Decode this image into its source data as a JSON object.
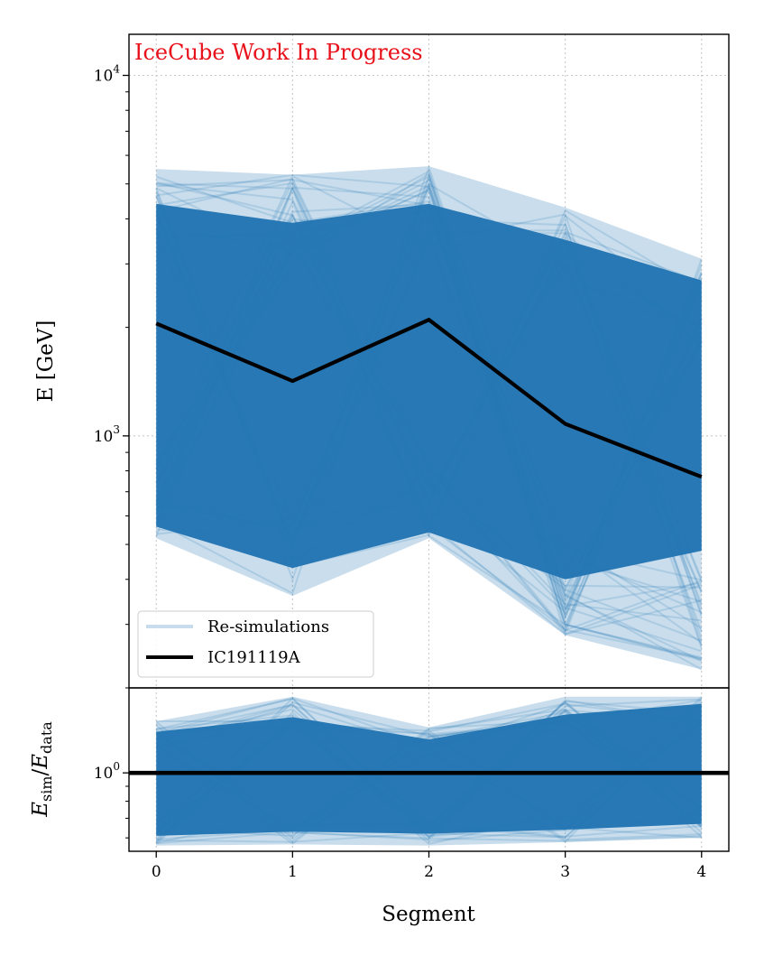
{
  "chart_data": {
    "type": "line",
    "watermark": "IceCube Work In Progress",
    "colors": {
      "band": "#2878b5",
      "band_light": "#c9dcee",
      "event": "#000000",
      "watermark": "#e8101a",
      "grid": "#c8c8c8"
    },
    "x": [
      0,
      1,
      2,
      3,
      4
    ],
    "xticks": [
      "0",
      "1",
      "2",
      "3",
      "4"
    ],
    "xlim": [
      -0.2,
      4.2
    ],
    "xlabel": "Segment",
    "top_panel": {
      "ylabel": "E [GeV]",
      "yscale": "log",
      "ylim": [
        200,
        13000
      ],
      "yticks": [
        {
          "value": 1000,
          "base": "10",
          "exp": "3"
        },
        {
          "value": 10000,
          "base": "10",
          "exp": "4"
        }
      ],
      "series": [
        {
          "name": "Re-simulations",
          "style": "band",
          "outer_min": [
            520,
            360,
            520,
            280,
            225
          ],
          "outer_max": [
            5500,
            5300,
            5600,
            4300,
            3100
          ],
          "core_min": [
            560,
            430,
            540,
            400,
            480
          ],
          "core_max": [
            4400,
            3900,
            4400,
            3500,
            2700
          ]
        },
        {
          "name": "IC191119A",
          "style": "line",
          "values": [
            2050,
            1420,
            2100,
            1080,
            770
          ]
        }
      ],
      "legend": {
        "location": "lower-left",
        "entries": [
          "Re-simulations",
          "IC191119A"
        ]
      }
    },
    "ratio_panel": {
      "ylabel_parts": [
        "E",
        "sim",
        "/",
        "E",
        "data"
      ],
      "yscale": "log",
      "ylim": [
        0.54,
        1.95
      ],
      "yticks": [
        {
          "value": 1,
          "base": "10",
          "exp": "0"
        }
      ],
      "reference_line": 1,
      "band": {
        "outer_min": [
          0.565,
          0.57,
          0.565,
          0.58,
          0.6
        ],
        "outer_max": [
          1.5,
          1.82,
          1.43,
          1.82,
          1.82
        ],
        "core_min": [
          0.61,
          0.63,
          0.62,
          0.64,
          0.67
        ],
        "core_max": [
          1.38,
          1.55,
          1.3,
          1.58,
          1.72
        ]
      }
    }
  }
}
